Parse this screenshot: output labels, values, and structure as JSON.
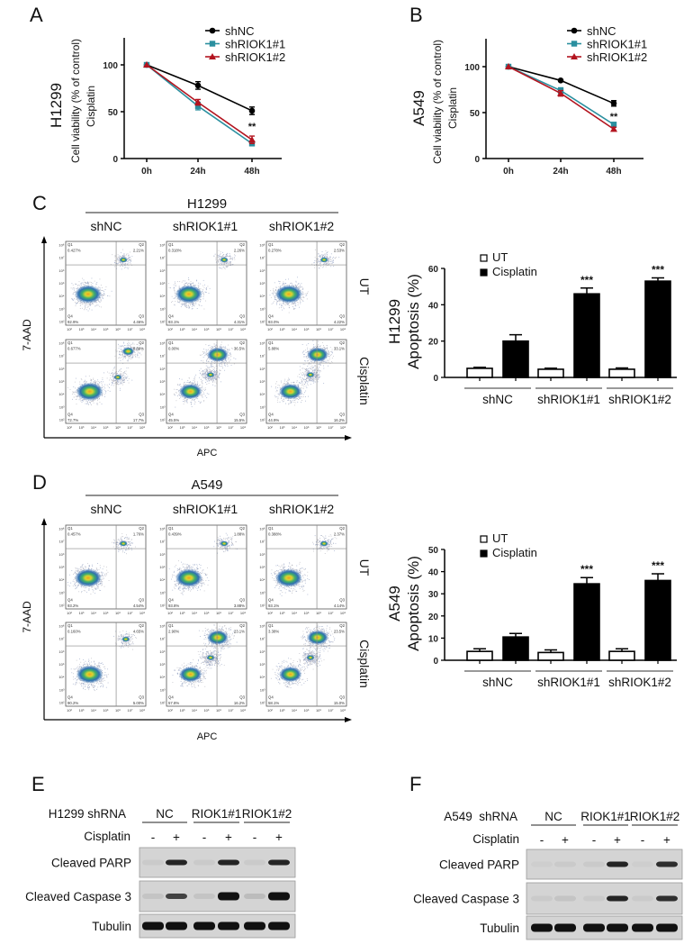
{
  "panels": {
    "A": {
      "letter": "A"
    },
    "B": {
      "letter": "B"
    },
    "C": {
      "letter": "C",
      "cell_line": "H1299",
      "x_axis": "APC",
      "y_axis": "7-AAD"
    },
    "D": {
      "letter": "D",
      "cell_line": "A549",
      "x_axis": "APC",
      "y_axis": "7-AAD"
    },
    "E": {
      "letter": "E",
      "header": "H1299 shRNA"
    },
    "F": {
      "letter": "F",
      "header": "A549  shRNA"
    }
  },
  "flow": {
    "columns": [
      "shNC",
      "shRIOK1#1",
      "shRIOK1#2"
    ],
    "rows": [
      "UT",
      "Cisplatin"
    ],
    "axis_ticks": [
      "10²",
      "10³",
      "10⁴",
      "10⁵",
      "10⁶",
      "10⁷",
      "10⁸"
    ],
    "gates": [
      "Q1",
      "Q2",
      "Q3",
      "Q4"
    ],
    "H1299": [
      [
        {
          "Q1": "0.427%",
          "Q2": "2.21%",
          "Q3": "4.46%",
          "Q4": "92.9%"
        },
        {
          "Q1": "0.318%",
          "Q2": "2.26%",
          "Q3": "4.31%",
          "Q4": "93.1%"
        },
        {
          "Q1": "0.278%",
          "Q2": "2.53%",
          "Q3": "4.22%",
          "Q4": "93.0%"
        }
      ],
      [
        {
          "Q1": "0.677%",
          "Q2": "8.89%",
          "Q3": "17.7%",
          "Q4": "72.7%"
        },
        {
          "Q1": "0.00%",
          "Q2": "36.5%",
          "Q3": "15.5%",
          "Q4": "45.5%"
        },
        {
          "Q1": "5.88%",
          "Q2": "33.1%",
          "Q3": "16.2%",
          "Q4": "44.9%"
        }
      ]
    ],
    "A549": [
      [
        {
          "Q1": "0.457%",
          "Q2": "1.76%",
          "Q3": "4.54%",
          "Q4": "93.2%"
        },
        {
          "Q1": "0.439%",
          "Q2": "1.88%",
          "Q3": "3.88%",
          "Q4": "93.8%"
        },
        {
          "Q1": "0.388%",
          "Q2": "2.37%",
          "Q3": "4.14%",
          "Q4": "93.1%"
        }
      ],
      [
        {
          "Q1": "0.160%",
          "Q2": "4.65%",
          "Q3": "5.00%",
          "Q4": "90.2%"
        },
        {
          "Q1": "2.90%",
          "Q2": "23.1%",
          "Q3": "16.2%",
          "Q4": "57.8%"
        },
        {
          "Q1": "3.38%",
          "Q2": "23.5%",
          "Q3": "15.0%",
          "Q4": "58.1%"
        }
      ]
    ]
  },
  "chart_data": [
    {
      "id": "A",
      "type": "line",
      "cell_line": "H1299",
      "ylabel": "Cell viability (% of control)",
      "ylabel2": "Cisplatin",
      "categories": [
        "0h",
        "24h",
        "48h"
      ],
      "yticks": [
        0,
        50,
        100
      ],
      "ylim": [
        0,
        130
      ],
      "series": [
        {
          "name": "shNC",
          "color": "#000000",
          "marker": "circle",
          "values": [
            100,
            78,
            51
          ],
          "errors": [
            0,
            4,
            4
          ]
        },
        {
          "name": "shRIOK1#1",
          "color": "#2a8f9f",
          "marker": "square",
          "values": [
            100,
            56,
            16
          ],
          "errors": [
            0,
            4,
            2
          ]
        },
        {
          "name": "shRIOK1#2",
          "color": "#b3141f",
          "marker": "triangle",
          "values": [
            100,
            60,
            20
          ],
          "errors": [
            0,
            3,
            4
          ]
        }
      ],
      "annotations": [
        {
          "category": "48h",
          "text": "**"
        }
      ],
      "legend": "top-right"
    },
    {
      "id": "B",
      "type": "line",
      "cell_line": "A549",
      "ylabel": "Cell viability (% of control)",
      "ylabel2": "Cisplatin",
      "categories": [
        "0h",
        "24h",
        "48h"
      ],
      "yticks": [
        0,
        50,
        100
      ],
      "ylim": [
        0,
        130
      ],
      "series": [
        {
          "name": "shNC",
          "color": "#000000",
          "marker": "circle",
          "values": [
            100,
            85,
            60
          ],
          "errors": [
            0,
            1,
            3
          ]
        },
        {
          "name": "shRIOK1#1",
          "color": "#2a8f9f",
          "marker": "square",
          "values": [
            100,
            74,
            37
          ],
          "errors": [
            0,
            3,
            2
          ]
        },
        {
          "name": "shRIOK1#2",
          "color": "#b3141f",
          "marker": "triangle",
          "values": [
            100,
            71,
            32
          ],
          "errors": [
            0,
            3,
            2
          ]
        }
      ],
      "annotations": [
        {
          "category": "48h",
          "text": "**"
        }
      ],
      "legend": "top-right"
    },
    {
      "id": "C",
      "type": "bar",
      "cell_line": "H1299",
      "ylabel": "Apoptosis (%)",
      "categories": [
        "shNC",
        "shRIOK1#1",
        "shRIOK1#2"
      ],
      "yticks": [
        0,
        20,
        40,
        60
      ],
      "ylim": [
        0,
        60
      ],
      "series": [
        {
          "name": "UT",
          "color": "#ffffff",
          "values": [
            5,
            4.5,
            4.5
          ],
          "errors": [
            0.6,
            0.6,
            0.7
          ]
        },
        {
          "name": "Cisplatin",
          "color": "#000000",
          "values": [
            20,
            46,
            53
          ],
          "errors": [
            3.5,
            3.2,
            1.8
          ]
        }
      ],
      "annotations": [
        {
          "category": "shRIOK1#1",
          "text": "***"
        },
        {
          "category": "shRIOK1#2",
          "text": "***"
        }
      ],
      "legend": "top-left"
    },
    {
      "id": "D",
      "type": "bar",
      "cell_line": "A549",
      "ylabel": "Apoptosis (%)",
      "categories": [
        "shNC",
        "shRIOK1#1",
        "shRIOK1#2"
      ],
      "yticks": [
        0,
        10,
        20,
        30,
        40,
        50
      ],
      "ylim": [
        0,
        50
      ],
      "series": [
        {
          "name": "UT",
          "color": "#ffffff",
          "values": [
            4,
            3.5,
            4
          ],
          "errors": [
            1.2,
            1.2,
            1.2
          ]
        },
        {
          "name": "Cisplatin",
          "color": "#000000",
          "values": [
            10.5,
            34.5,
            36
          ],
          "errors": [
            1.6,
            2.8,
            3
          ]
        }
      ],
      "annotations": [
        {
          "category": "shRIOK1#1",
          "text": "***"
        },
        {
          "category": "shRIOK1#2",
          "text": "***"
        }
      ],
      "legend": "top-left"
    }
  ],
  "western": {
    "groups": [
      "NC",
      "RIOK1#1",
      "RIOK1#2"
    ],
    "treatment_label": "Cisplatin",
    "lanes": [
      "-",
      "+",
      "-",
      "+",
      "-",
      "+"
    ],
    "blots": [
      "Cleaved PARP",
      "Cleaved Caspase 3",
      "Tubulin"
    ],
    "E_intensity": [
      [
        0.05,
        0.9,
        0.05,
        0.9,
        0.05,
        0.9
      ],
      [
        0.08,
        0.75,
        0.08,
        1.0,
        0.12,
        1.0
      ],
      [
        1,
        1,
        1,
        1,
        1,
        1
      ]
    ],
    "F_intensity": [
      [
        0.03,
        0.05,
        0.05,
        0.9,
        0.03,
        0.85
      ],
      [
        0.05,
        0.08,
        0.05,
        0.9,
        0.05,
        0.85
      ],
      [
        1,
        1,
        1,
        1,
        1,
        1
      ]
    ]
  }
}
